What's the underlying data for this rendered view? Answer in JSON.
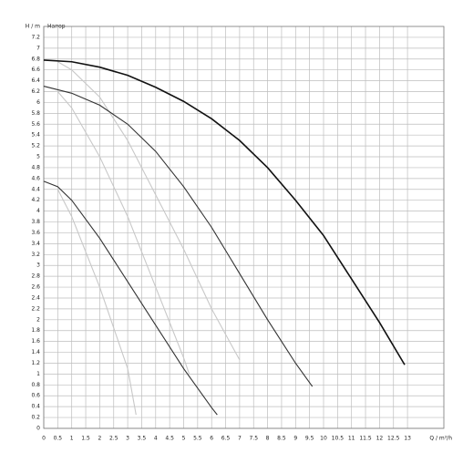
{
  "chart_data": {
    "type": "line",
    "y_label": "H / m",
    "title": "Напор",
    "x_label": "Q / m³/h",
    "xlim": [
      0,
      14.3
    ],
    "ylim": [
      0,
      7.4
    ],
    "xticks": [
      0,
      0.5,
      1,
      1.5,
      2,
      2.5,
      3,
      3.5,
      4,
      4.5,
      5,
      5.5,
      6,
      6.5,
      7,
      7.5,
      8,
      8.5,
      9,
      9.5,
      10,
      10.5,
      11,
      11.5,
      12,
      12.5,
      13
    ],
    "yticks": [
      0,
      0.2,
      0.4,
      0.6,
      0.8,
      1,
      1.2,
      1.4,
      1.6,
      1.8,
      2,
      2.2,
      2.4,
      2.6,
      2.8,
      3,
      3.2,
      3.4,
      3.6,
      3.8,
      4,
      4.2,
      4.4,
      4.6,
      4.8,
      5,
      5.2,
      5.4,
      5.6,
      5.8,
      6,
      6.2,
      6.4,
      6.6,
      6.8,
      7,
      7.2
    ],
    "grid": true,
    "series": [
      {
        "color": "#c8c8c8",
        "x": [
          0.5,
          1,
          2,
          3,
          4,
          5,
          6,
          7
        ],
        "values": [
          6.75,
          6.6,
          6.1,
          5.3,
          4.3,
          3.3,
          2.2,
          1.26
        ]
      },
      {
        "color": "#c8c8c8",
        "x": [
          0.5,
          1,
          2,
          3,
          4,
          5,
          5.2
        ],
        "values": [
          6.2,
          5.9,
          5.0,
          3.9,
          2.6,
          1.3,
          1.0
        ]
      },
      {
        "color": "#c8c8c8",
        "x": [
          0.5,
          1,
          2,
          3,
          3.3
        ],
        "values": [
          4.4,
          3.9,
          2.6,
          1.1,
          0.25
        ]
      },
      {
        "color": "#111111",
        "x": [
          0,
          1,
          2,
          3,
          4,
          5,
          6,
          7,
          8,
          9,
          10,
          11,
          12,
          12.9
        ],
        "values": [
          6.78,
          6.75,
          6.65,
          6.5,
          6.28,
          6.02,
          5.7,
          5.3,
          4.8,
          4.2,
          3.55,
          2.75,
          1.95,
          1.17
        ]
      },
      {
        "color": "#333333",
        "x": [
          0,
          1,
          2,
          3,
          4,
          5,
          6,
          7,
          8,
          9,
          9.6
        ],
        "values": [
          6.3,
          6.17,
          5.95,
          5.6,
          5.1,
          4.45,
          3.7,
          2.85,
          2.0,
          1.2,
          0.77
        ]
      },
      {
        "color": "#333333",
        "x": [
          0,
          0.5,
          1,
          2,
          3,
          4,
          5,
          6,
          6.2
        ],
        "values": [
          4.55,
          4.45,
          4.2,
          3.5,
          2.7,
          1.9,
          1.1,
          0.38,
          0.25
        ]
      }
    ]
  }
}
